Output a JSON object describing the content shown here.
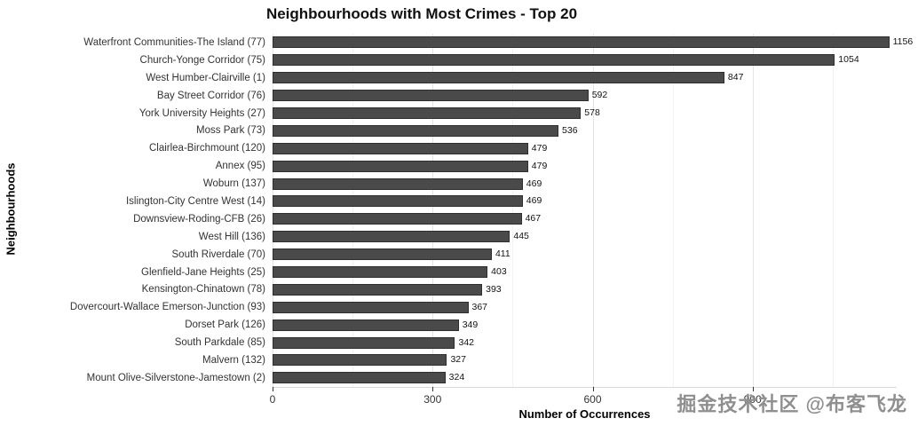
{
  "watermark": "掘金技术社区 @布客飞龙",
  "chart_data": {
    "type": "bar",
    "orientation": "horizontal",
    "title": "Neighbourhoods with Most Crimes - Top 20",
    "xlabel": "Number of Occurrences",
    "ylabel": "Neighbourhoods",
    "categories": [
      "Waterfront Communities-The Island (77)",
      "Church-Yonge Corridor (75)",
      "West Humber-Clairville (1)",
      "Bay Street Corridor (76)",
      "York University Heights (27)",
      "Moss Park (73)",
      "Clairlea-Birchmount (120)",
      "Annex (95)",
      "Woburn (137)",
      "Islington-City Centre West (14)",
      "Downsview-Roding-CFB (26)",
      "West Hill (136)",
      "South Riverdale (70)",
      "Glenfield-Jane Heights (25)",
      "Kensington-Chinatown (78)",
      "Dovercourt-Wallace Emerson-Junction (93)",
      "Dorset Park (126)",
      "South Parkdale (85)",
      "Malvern (132)",
      "Mount Olive-Silverstone-Jamestown (2)"
    ],
    "values": [
      1156,
      1054,
      847,
      592,
      578,
      536,
      479,
      479,
      469,
      469,
      467,
      445,
      411,
      403,
      393,
      367,
      349,
      342,
      327,
      324
    ],
    "x_ticks": [
      0,
      300,
      600,
      900
    ],
    "minor_ticks": [
      150,
      450,
      750,
      1050
    ],
    "xlim": [
      0,
      1170
    ],
    "bar_color": "#4a4a4a",
    "grid": true,
    "value_labels": true,
    "legend": "none"
  }
}
